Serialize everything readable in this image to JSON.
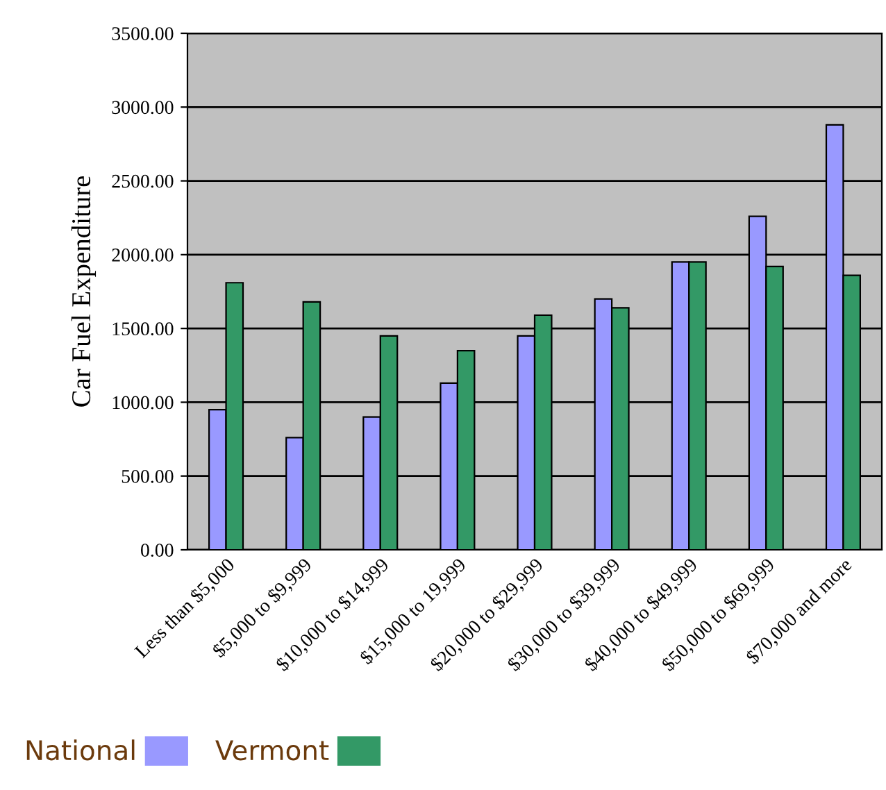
{
  "chart_data": {
    "type": "bar",
    "ylabel": "Car Fuel Expenditure",
    "categories": [
      "Less than $5,000",
      "$5,000 to $9,999",
      "$10,000 to $14,999",
      "$15,000 to 19,999",
      "$20,000 to $29,999",
      "$30,000 to $39,999",
      "$40,000 to $49,999",
      "$50,000 to $69,999",
      "$70,000 and more"
    ],
    "series": [
      {
        "name": "National",
        "color": "#9999ff",
        "values": [
          950,
          760,
          900,
          1130,
          1450,
          1700,
          1950,
          2260,
          2880
        ]
      },
      {
        "name": "Vermont",
        "color": "#339966",
        "values": [
          1810,
          1680,
          1450,
          1350,
          1590,
          1640,
          1950,
          1920,
          1860
        ]
      }
    ],
    "ylim": [
      0,
      3500
    ],
    "yticks": [
      {
        "value": 0,
        "label": "0.00"
      },
      {
        "value": 500,
        "label": "500.00"
      },
      {
        "value": 1000,
        "label": "1000.00"
      },
      {
        "value": 1500,
        "label": "1500.00"
      },
      {
        "value": 2000,
        "label": "2000.00"
      },
      {
        "value": 2500,
        "label": "2500.00"
      },
      {
        "value": 3000,
        "label": "3000.00"
      },
      {
        "value": 3500,
        "label": "3500.00"
      }
    ],
    "grid": "y",
    "legend": "bottom left"
  }
}
